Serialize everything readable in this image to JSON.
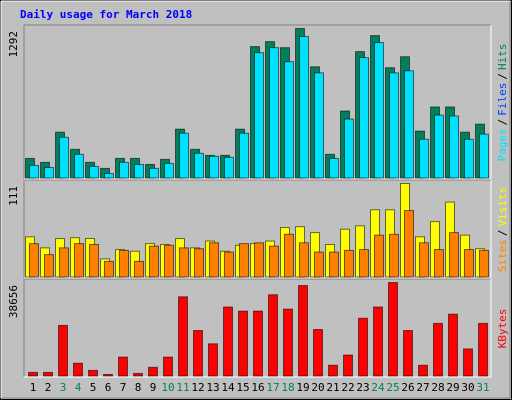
{
  "chart_data": [
    {
      "type": "bar",
      "title": "Daily usage for March 2018",
      "ylim": [
        0,
        1292
      ],
      "legend_separator": "/",
      "series": [
        {
          "name": "Hits",
          "color": "#00805c",
          "values": [
            173,
            139,
            399,
            251,
            139,
            87,
            173,
            173,
            121,
            165,
            425,
            251,
            199,
            199,
            425,
            1136,
            1179,
            1127,
            1292,
            962,
            208,
            581,
            1093,
            1231,
            954,
            1049,
            408,
            616,
            616,
            399,
            468
          ]
        },
        {
          "name": "Pages",
          "color": "#00e0ff",
          "values": [
            113,
            95,
            355,
            208,
            104,
            43,
            139,
            121,
            87,
            130,
            390,
            217,
            191,
            182,
            390,
            1084,
            1127,
            1006,
            1223,
            910,
            173,
            512,
            1041,
            1171,
            910,
            928,
            338,
            546,
            538,
            338,
            382
          ]
        }
      ],
      "extra_legend": [
        {
          "name": "Files",
          "color": "#0040ff"
        }
      ]
    },
    {
      "type": "bar",
      "ylim": [
        0,
        111
      ],
      "legend_separator": "/",
      "series": [
        {
          "name": "Visits",
          "color": "#ffff00",
          "values": [
            48,
            35,
            46,
            47,
            46,
            22,
            33,
            31,
            40,
            39,
            46,
            35,
            43,
            31,
            38,
            40,
            43,
            59,
            60,
            53,
            39,
            57,
            61,
            80,
            80,
            111,
            48,
            66,
            89,
            50,
            34
          ]
        },
        {
          "name": "Sites",
          "color": "#ff8000",
          "values": [
            40,
            27,
            35,
            40,
            39,
            19,
            32,
            19,
            37,
            38,
            35,
            34,
            41,
            30,
            40,
            41,
            37,
            51,
            41,
            30,
            30,
            32,
            33,
            50,
            51,
            79,
            41,
            33,
            53,
            33,
            32
          ]
        }
      ]
    },
    {
      "type": "bar",
      "ylim": [
        0,
        38656
      ],
      "categories": [
        "1",
        "2",
        "3",
        "4",
        "5",
        "6",
        "7",
        "8",
        "9",
        "10",
        "11",
        "12",
        "13",
        "14",
        "15",
        "16",
        "17",
        "18",
        "19",
        "20",
        "21",
        "22",
        "23",
        "24",
        "25",
        "26",
        "27",
        "28",
        "29",
        "30",
        "31"
      ],
      "category_colors": [
        "#000000",
        "#000000",
        "#00805c",
        "#00805c",
        "#000000",
        "#000000",
        "#000000",
        "#000000",
        "#000000",
        "#00805c",
        "#00805c",
        "#000000",
        "#000000",
        "#000000",
        "#000000",
        "#000000",
        "#00805c",
        "#00805c",
        "#000000",
        "#000000",
        "#000000",
        "#000000",
        "#000000",
        "#00805c",
        "#00805c",
        "#000000",
        "#000000",
        "#000000",
        "#000000",
        "#000000",
        "#00805c"
      ],
      "series": [
        {
          "name": "KBytes",
          "color": "#ff0000",
          "values": [
            1681,
            1681,
            21009,
            5462,
            2521,
            840,
            7984,
            1261,
            3782,
            7984,
            32774,
            18908,
            13446,
            28572,
            26892,
            26892,
            33614,
            27733,
            37396,
            19328,
            4622,
            8824,
            23950,
            28572,
            38656,
            18908,
            4622,
            21849,
            25630,
            11345,
            21849
          ]
        }
      ]
    }
  ]
}
